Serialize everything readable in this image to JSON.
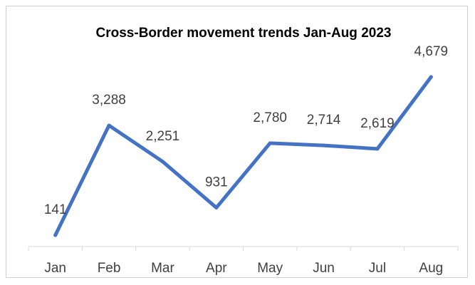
{
  "chart_data": {
    "type": "line",
    "title": "Cross-Border movement trends Jan-Aug 2023",
    "xlabel": "",
    "ylabel": "",
    "categories": [
      "Jan",
      "Feb",
      "Mar",
      "Apr",
      "May",
      "Jun",
      "Jul",
      "Aug"
    ],
    "series": [
      {
        "values": [
          141,
          3288,
          2251,
          931,
          2780,
          2714,
          2619,
          4679
        ],
        "labels": [
          "141",
          "3,288",
          "2,251",
          "931",
          "2,780",
          "2,714",
          "2,619",
          "4,679"
        ],
        "color": "#4472c4"
      }
    ],
    "ylim": [
      0,
      5000
    ],
    "grid": false,
    "legend": "none"
  }
}
